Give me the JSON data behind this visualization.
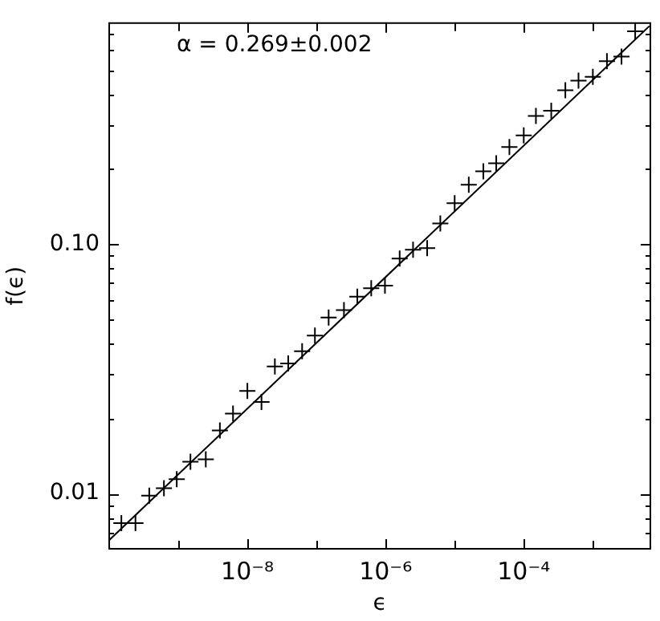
{
  "chart_data": {
    "type": "scatter",
    "xlabel": "ϵ",
    "ylabel": "f(ϵ)",
    "annotations": [
      "α = 0.269±0.002"
    ],
    "log": "xy",
    "marker": "cross",
    "legend": false,
    "xlim": [
      1e-10,
      0.0068
    ],
    "ylim": [
      0.006,
      0.77
    ],
    "xticks": [
      {
        "value": 1e-09,
        "label": null
      },
      {
        "value": 1e-08,
        "label": "10⁻⁸"
      },
      {
        "value": 1e-07,
        "label": null
      },
      {
        "value": 1e-06,
        "label": "10⁻⁶"
      },
      {
        "value": 1e-05,
        "label": null
      },
      {
        "value": 0.0001,
        "label": "10⁻⁴"
      },
      {
        "value": 0.001,
        "label": null
      }
    ],
    "yticks": [
      {
        "value": 0.007,
        "label": null
      },
      {
        "value": 0.008,
        "label": null
      },
      {
        "value": 0.009,
        "label": null
      },
      0.01,
      {
        "value": 0.02,
        "label": null
      },
      {
        "value": 0.03,
        "label": null
      },
      {
        "value": 0.04,
        "label": null
      },
      {
        "value": 0.05,
        "label": null
      },
      {
        "value": 0.06,
        "label": null
      },
      {
        "value": 0.07,
        "label": null
      },
      {
        "value": 0.08,
        "label": null
      },
      {
        "value": 0.09,
        "label": null
      },
      {
        "value": 0.1,
        "label": "0.10"
      },
      {
        "value": 0.2,
        "label": null
      },
      {
        "value": 0.3,
        "label": null
      },
      {
        "value": 0.4,
        "label": null
      },
      {
        "value": 0.5,
        "label": null
      },
      {
        "value": 0.6,
        "label": null
      },
      {
        "value": 0.7,
        "label": null
      }
    ],
    "series": [
      {
        "color": "#000000",
        "x": [
          1.5e-10,
          2.4e-10,
          3.8e-10,
          6.2e-10,
          9.5e-10,
          1.5e-09,
          2.5e-09,
          4e-09,
          6.2e-09,
          1e-08,
          1.6e-08,
          2.5e-08,
          3.9e-08,
          6.2e-08,
          9.5e-08,
          1.5e-07,
          2.5e-07,
          3.9e-07,
          6.2e-07,
          9.8e-07,
          1.6e-06,
          2.5e-06,
          4e-06,
          6.2e-06,
          1e-05,
          1.6e-05,
          2.6e-05,
          4e-05,
          6.2e-05,
          0.0001,
          0.00015,
          0.00025,
          0.0004,
          0.00062,
          0.001,
          0.0016,
          0.0026,
          0.0041
        ],
        "values": [
          0.0076,
          0.0076,
          0.0098,
          0.0105,
          0.0114,
          0.0134,
          0.0137,
          0.0179,
          0.0209,
          0.0258,
          0.0233,
          0.0323,
          0.0332,
          0.0372,
          0.043,
          0.0508,
          0.0544,
          0.0616,
          0.0665,
          0.0682,
          0.0875,
          0.0949,
          0.0964,
          0.121,
          0.146,
          0.173,
          0.196,
          0.211,
          0.245,
          0.273,
          0.327,
          0.343,
          0.414,
          0.453,
          0.469,
          0.542,
          0.565,
          0.714
        ]
      },
      {
        "type": "line",
        "color": "#000000",
        "line_style": "solid",
        "marker": "none",
        "x": [
          1e-10,
          0.0066
        ],
        "values": [
          0.0065,
          0.75
        ]
      }
    ]
  }
}
